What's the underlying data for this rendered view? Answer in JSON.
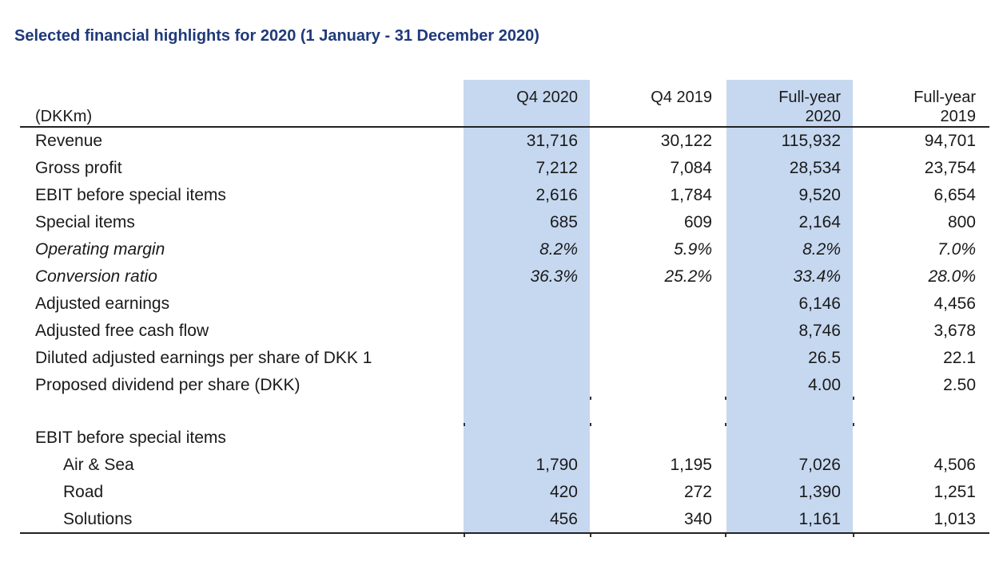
{
  "title": "Selected financial highlights for 2020 (1 January - 31 December 2020)",
  "table": {
    "unit_label": "(DKKm)",
    "columns": [
      {
        "line1": "",
        "line2": "Q4 2020",
        "highlighted": true
      },
      {
        "line1": "",
        "line2": "Q4 2019",
        "highlighted": false
      },
      {
        "line1": "Full-year",
        "line2": "2020",
        "highlighted": true
      },
      {
        "line1": "Full-year",
        "line2": "2019",
        "highlighted": false
      }
    ],
    "rows": [
      {
        "label": "Revenue",
        "values": [
          "31,716",
          "30,122",
          "115,932",
          "94,701"
        ]
      },
      {
        "label": "Gross profit",
        "values": [
          "7,212",
          "7,084",
          "28,534",
          "23,754"
        ]
      },
      {
        "label": "EBIT before special items",
        "values": [
          "2,616",
          "1,784",
          "9,520",
          "6,654"
        ]
      },
      {
        "label": "Special items",
        "values": [
          "685",
          "609",
          "2,164",
          "800"
        ]
      },
      {
        "label": "Operating margin",
        "values": [
          "8.2%",
          "5.9%",
          "8.2%",
          "7.0%"
        ],
        "italic": true
      },
      {
        "label": "Conversion ratio",
        "values": [
          "36.3%",
          "25.2%",
          "33.4%",
          "28.0%"
        ],
        "italic": true
      },
      {
        "label": "Adjusted earnings",
        "values": [
          "",
          "",
          "6,146",
          "4,456"
        ]
      },
      {
        "label": "Adjusted free cash flow",
        "values": [
          "",
          "",
          "8,746",
          "3,678"
        ]
      },
      {
        "label": "Diluted adjusted earnings per share of DKK 1",
        "values": [
          "",
          "",
          "26.5",
          "22.1"
        ]
      },
      {
        "label": "Proposed dividend per share (DKK)",
        "values": [
          "",
          "",
          "4.00",
          "2.50"
        ]
      },
      {
        "label": "",
        "values": [
          "",
          "",
          "",
          ""
        ]
      },
      {
        "label": "EBIT before special items",
        "values": [
          "",
          "",
          "",
          ""
        ]
      },
      {
        "label": "Air & Sea",
        "values": [
          "1,790",
          "1,195",
          "7,026",
          "4,506"
        ],
        "indent": true
      },
      {
        "label": "Road",
        "values": [
          "420",
          "272",
          "1,390",
          "1,251"
        ],
        "indent": true
      },
      {
        "label": "Solutions",
        "values": [
          "456",
          "340",
          "1,161",
          "1,013"
        ],
        "indent": true
      }
    ]
  },
  "colors": {
    "title": "#1f3a7a",
    "column_highlight": "#c6d8f0",
    "rule": "#222222"
  }
}
